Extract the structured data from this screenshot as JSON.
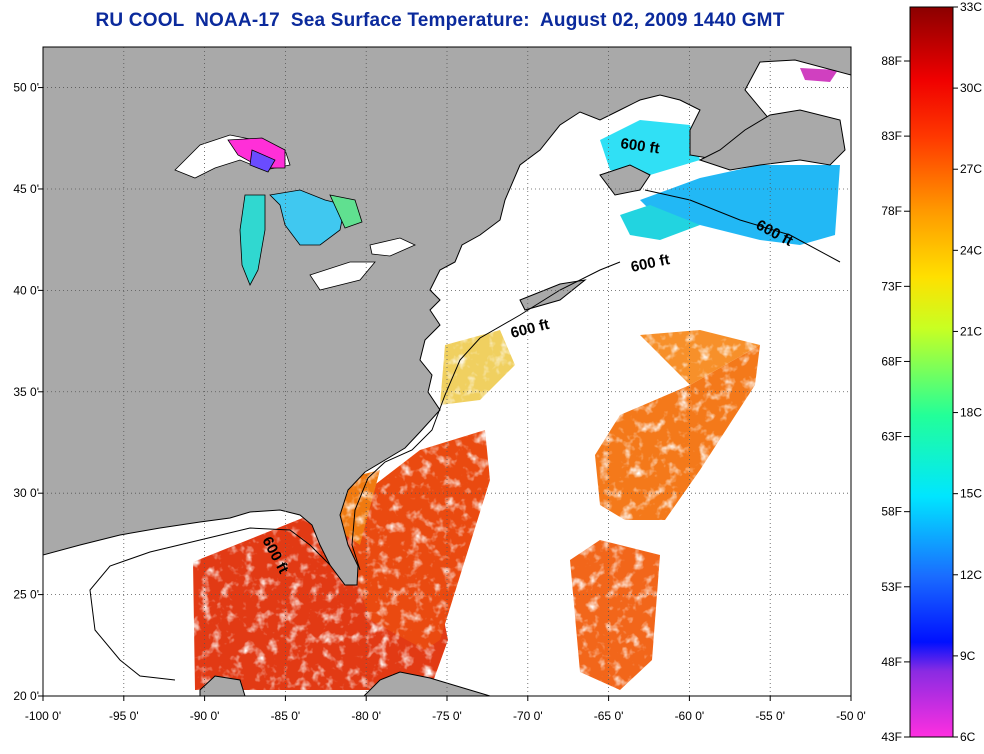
{
  "title": "RU COOL  NOAA-17  Sea Surface Temperature:  August 02, 2009 1440 GMT",
  "map": {
    "lon_range": [
      -100,
      -50
    ],
    "lat_range": [
      20,
      52
    ],
    "lon_labels": [
      "-100 0'",
      "-95 0'",
      "-90 0'",
      "-85 0'",
      "-80 0'",
      "-75 0'",
      "-70 0'",
      "-65 0'",
      "-60 0'",
      "-55 0'",
      "-50 0'"
    ],
    "lat_labels": [
      "20 0'",
      "25 0'",
      "30 0'",
      "35 0'",
      "40 0'",
      "45 0'",
      "50 0'"
    ],
    "grid": "dotted",
    "land_color": "#a9a9a9",
    "no_data_color": "#ffffff",
    "isobath_label": "600 ft"
  },
  "colorbar": {
    "fahrenheit_labels": [
      "88F",
      "83F",
      "78F",
      "73F",
      "68F",
      "63F",
      "58F",
      "53F",
      "48F",
      "43F"
    ],
    "celsius_labels": [
      "33C",
      "30C",
      "27C",
      "24C",
      "21C",
      "18C",
      "15C",
      "12C",
      "9C",
      "6C"
    ]
  }
}
